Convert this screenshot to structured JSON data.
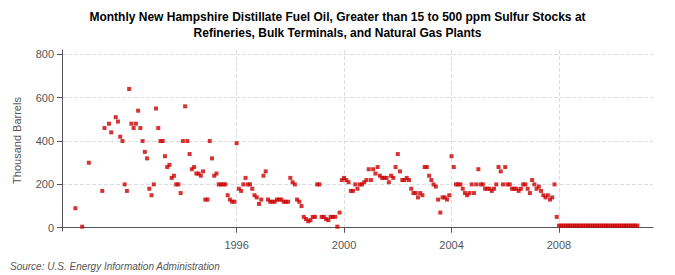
{
  "chart_data": {
    "type": "scatter",
    "title": "Monthly New Hampshire Distillate Fuel Oil, Greater than 15 to 500 ppm Sulfur Stocks at\nRefineries, Bulk Terminals, and Natural Gas Plants",
    "ylabel": "Thousand Barrels",
    "annotation": "Source: U.S. Energy Information Administration",
    "color": "#cc0000",
    "marker": "square",
    "grid": true,
    "xlim": [
      1989.5,
      2011.5
    ],
    "xticks": [
      1996,
      2000,
      2004,
      2008
    ],
    "ylim": [
      -15,
      820
    ],
    "yticks": [
      0,
      200,
      400,
      600,
      800
    ],
    "x": [
      1990.0,
      1990.25,
      1990.5,
      1991.0,
      1991.083,
      1991.25,
      1991.333,
      1991.5,
      1991.583,
      1991.667,
      1991.75,
      1991.833,
      1991.917,
      1992.0,
      1992.083,
      1992.167,
      1992.25,
      1992.333,
      1992.417,
      1992.5,
      1992.583,
      1992.667,
      1992.75,
      1992.833,
      1992.917,
      1993.0,
      1993.083,
      1993.167,
      1993.25,
      1993.333,
      1993.417,
      1993.5,
      1993.583,
      1993.667,
      1993.75,
      1993.833,
      1993.917,
      1994.0,
      1994.083,
      1994.167,
      1994.25,
      1994.333,
      1994.417,
      1994.5,
      1994.583,
      1994.667,
      1994.75,
      1994.833,
      1994.917,
      1995.0,
      1995.083,
      1995.167,
      1995.25,
      1995.333,
      1995.417,
      1995.5,
      1995.583,
      1995.667,
      1995.75,
      1995.833,
      1995.917,
      1996.0,
      1996.083,
      1996.167,
      1996.25,
      1996.333,
      1996.417,
      1996.5,
      1996.583,
      1996.667,
      1996.75,
      1996.833,
      1996.917,
      1997.0,
      1997.083,
      1997.167,
      1997.25,
      1997.333,
      1997.417,
      1997.5,
      1997.583,
      1997.667,
      1997.75,
      1997.833,
      1997.917,
      1998.0,
      1998.083,
      1998.167,
      1998.25,
      1998.333,
      1998.417,
      1998.5,
      1998.583,
      1998.667,
      1998.75,
      1998.833,
      1998.917,
      1999.0,
      1999.083,
      1999.167,
      1999.25,
      1999.333,
      1999.417,
      1999.5,
      1999.583,
      1999.667,
      1999.75,
      1999.833,
      1999.917,
      2000.0,
      2000.083,
      2000.167,
      2000.25,
      2000.333,
      2000.417,
      2000.5,
      2000.583,
      2000.667,
      2000.75,
      2000.833,
      2000.917,
      2001.0,
      2001.083,
      2001.167,
      2001.25,
      2001.333,
      2001.417,
      2001.5,
      2001.583,
      2001.667,
      2001.75,
      2001.833,
      2001.917,
      2002.0,
      2002.083,
      2002.167,
      2002.25,
      2002.333,
      2002.417,
      2002.5,
      2002.583,
      2002.667,
      2002.75,
      2002.833,
      2002.917,
      2003.0,
      2003.083,
      2003.167,
      2003.25,
      2003.333,
      2003.417,
      2003.5,
      2003.583,
      2003.667,
      2003.75,
      2003.833,
      2003.917,
      2004.0,
      2004.083,
      2004.167,
      2004.25,
      2004.333,
      2004.417,
      2004.5,
      2004.583,
      2004.667,
      2004.75,
      2004.833,
      2004.917,
      2005.0,
      2005.083,
      2005.167,
      2005.25,
      2005.333,
      2005.417,
      2005.5,
      2005.583,
      2005.667,
      2005.75,
      2005.833,
      2005.917,
      2006.0,
      2006.083,
      2006.167,
      2006.25,
      2006.333,
      2006.417,
      2006.5,
      2006.583,
      2006.667,
      2006.75,
      2006.833,
      2006.917,
      2007.0,
      2007.083,
      2007.167,
      2007.25,
      2007.333,
      2007.417,
      2007.5,
      2007.583,
      2007.667,
      2007.75,
      2007.833,
      2007.917,
      2008.0,
      2008.083,
      2008.167,
      2008.25,
      2008.333,
      2008.417,
      2008.5,
      2008.583,
      2008.667,
      2008.75,
      2008.833,
      2008.917,
      2009.0,
      2009.083,
      2009.167,
      2009.25,
      2009.333,
      2009.417,
      2009.5,
      2009.583,
      2009.667,
      2009.75,
      2009.833,
      2009.917,
      2010.0,
      2010.083,
      2010.167,
      2010.25,
      2010.333,
      2010.417,
      2010.5,
      2010.583,
      2010.667,
      2010.75,
      2010.833,
      2010.917
    ],
    "values": [
      90,
      5,
      300,
      170,
      460,
      480,
      440,
      510,
      490,
      420,
      400,
      200,
      170,
      640,
      480,
      460,
      480,
      540,
      460,
      400,
      350,
      320,
      180,
      150,
      200,
      550,
      460,
      400,
      400,
      330,
      280,
      290,
      230,
      240,
      200,
      200,
      160,
      400,
      560,
      400,
      340,
      270,
      280,
      250,
      250,
      240,
      260,
      130,
      130,
      400,
      320,
      240,
      250,
      200,
      200,
      200,
      200,
      150,
      130,
      120,
      120,
      390,
      180,
      170,
      200,
      230,
      200,
      200,
      180,
      150,
      140,
      110,
      130,
      240,
      260,
      130,
      120,
      120,
      120,
      130,
      130,
      130,
      120,
      120,
      120,
      230,
      210,
      200,
      130,
      120,
      100,
      50,
      40,
      30,
      35,
      50,
      50,
      200,
      200,
      50,
      50,
      40,
      35,
      50,
      50,
      50,
      5,
      70,
      220,
      230,
      220,
      210,
      170,
      170,
      200,
      180,
      200,
      200,
      210,
      220,
      270,
      220,
      270,
      250,
      280,
      240,
      230,
      230,
      230,
      210,
      240,
      230,
      280,
      340,
      260,
      220,
      220,
      230,
      220,
      180,
      160,
      160,
      140,
      160,
      150,
      280,
      280,
      240,
      220,
      200,
      190,
      130,
      70,
      140,
      140,
      130,
      150,
      330,
      280,
      200,
      200,
      200,
      180,
      160,
      150,
      160,
      200,
      160,
      200,
      270,
      200,
      200,
      180,
      180,
      180,
      170,
      180,
      200,
      280,
      260,
      200,
      280,
      200,
      200,
      180,
      180,
      180,
      170,
      180,
      200,
      200,
      180,
      160,
      220,
      200,
      180,
      190,
      170,
      150,
      140,
      150,
      130,
      140,
      200,
      50,
      10,
      10,
      10,
      10,
      10,
      10,
      10,
      10,
      10,
      10,
      10,
      10,
      10,
      10,
      10,
      10,
      10,
      10,
      10,
      10,
      10,
      10,
      10,
      10,
      10,
      10,
      10,
      10,
      10,
      10,
      10,
      10,
      10,
      10,
      10,
      10
    ]
  }
}
